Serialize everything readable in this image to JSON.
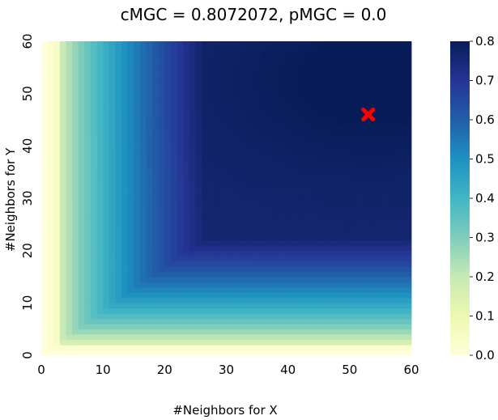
{
  "chart_data": {
    "type": "heatmap",
    "title": "cMGC = 0.8072072, pMGC = 0.0",
    "xlabel": "#Neighbors for X",
    "ylabel": "#Neighbors for Y",
    "x_range": [
      0,
      60
    ],
    "y_range": [
      0,
      60
    ],
    "x_ticks": [
      "0",
      "10",
      "20",
      "30",
      "40",
      "50",
      "60"
    ],
    "y_ticks": [
      "0",
      "10",
      "20",
      "30",
      "40",
      "50",
      "60"
    ],
    "colormap": "YlGnBu",
    "color_range": [
      0.0,
      0.8
    ],
    "colorbar_ticks": [
      "0.0",
      "0.1",
      "0.2",
      "0.3",
      "0.4",
      "0.5",
      "0.6",
      "0.7",
      "0.8"
    ],
    "optimal_marker": {
      "x": 53,
      "y": 46,
      "symbol": "X",
      "color": "#ff0000"
    },
    "max_value": 0.8072072
  }
}
